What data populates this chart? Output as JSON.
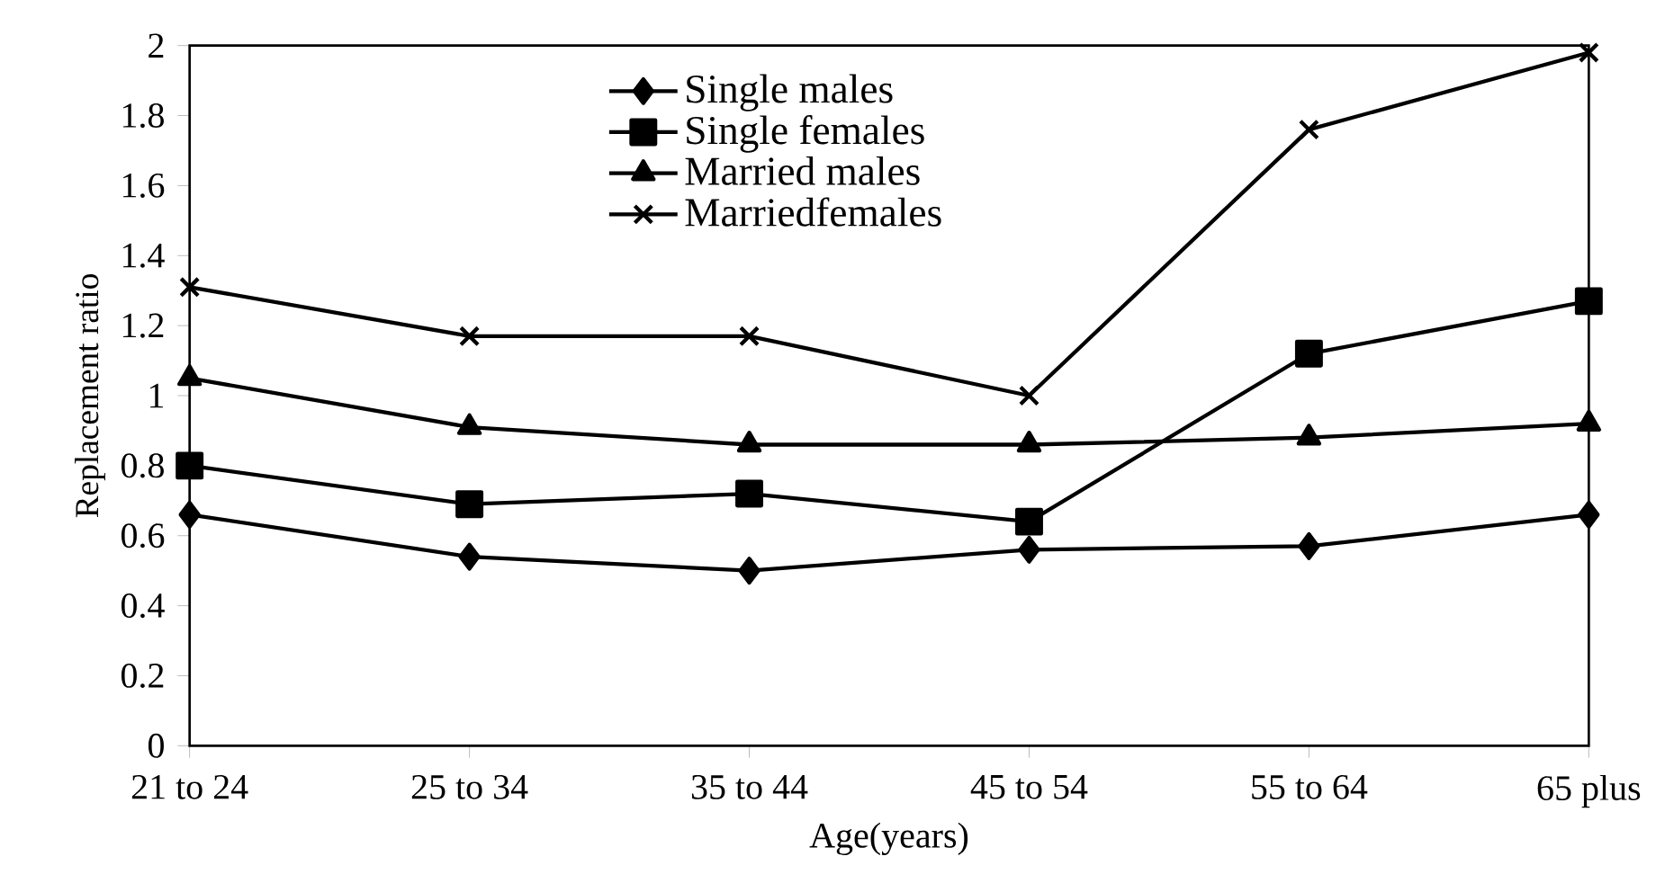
{
  "chart_data": {
    "type": "line",
    "xlabel": "Age(years)",
    "ylabel": "Replacement ratio",
    "categories": [
      "21 to 24",
      "25 to 34",
      "35 to 44",
      "45 to 54",
      "55 to 64",
      "65 plus"
    ],
    "series": [
      {
        "name": "Single males",
        "color": "#000000",
        "marker": "diamond",
        "values": [
          0.66,
          0.54,
          0.5,
          0.56,
          0.57,
          0.66
        ]
      },
      {
        "name": "Single females",
        "color": "#000000",
        "marker": "square",
        "values": [
          0.8,
          0.69,
          0.72,
          0.64,
          1.12,
          1.27
        ]
      },
      {
        "name": "Married males",
        "color": "#000000",
        "marker": "triangle",
        "values": [
          1.05,
          0.91,
          0.86,
          0.86,
          0.88,
          0.92
        ]
      },
      {
        "name": "Marriedfemales",
        "color": "#000000",
        "marker": "cross",
        "values": [
          1.31,
          1.17,
          1.17,
          1.0,
          1.76,
          1.98
        ]
      }
    ],
    "ylim": [
      0,
      2
    ],
    "yticks": [
      0,
      0.2,
      0.4,
      0.6,
      0.8,
      1,
      1.2,
      1.4,
      1.6,
      1.8,
      2
    ],
    "legend": "top left",
    "line_style": "solid"
  }
}
